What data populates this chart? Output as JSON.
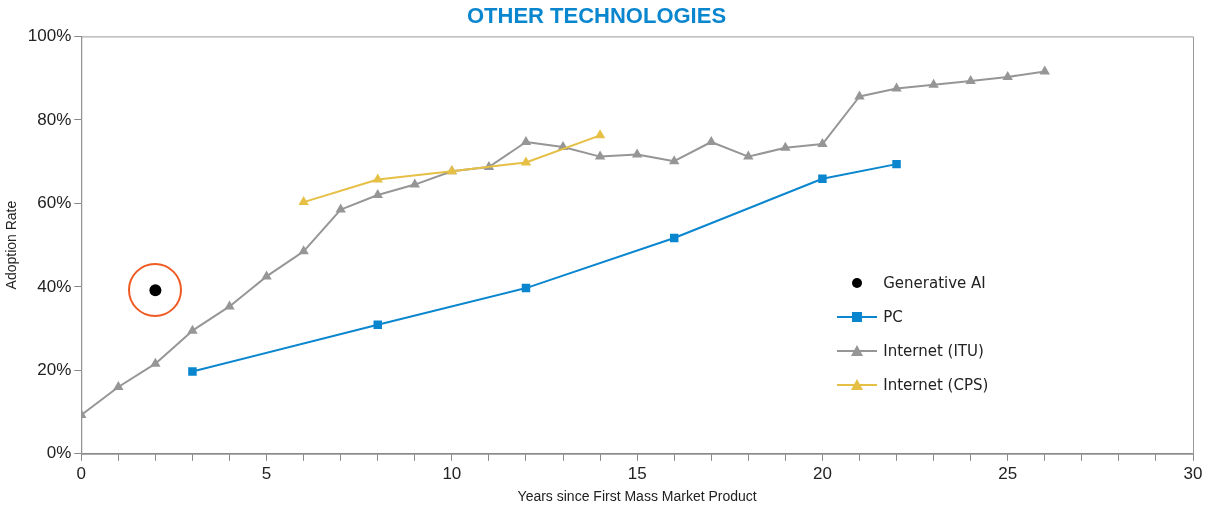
{
  "chart_data": {
    "type": "line",
    "title": "OTHER TECHNOLOGIES",
    "xlabel": "Years since First Mass Market Product",
    "ylabel": "Adoption Rate",
    "xlim": [
      0,
      30
    ],
    "xticks": [
      0,
      {
        "value": 1,
        "label": null
      },
      {
        "value": 2,
        "label": null
      },
      {
        "value": 3,
        "label": null
      },
      {
        "value": 4,
        "label": null
      },
      5,
      {
        "value": 6,
        "label": null
      },
      {
        "value": 7,
        "label": null
      },
      {
        "value": 8,
        "label": null
      },
      {
        "value": 9,
        "label": null
      },
      10,
      {
        "value": 11,
        "label": null
      },
      {
        "value": 12,
        "label": null
      },
      {
        "value": 13,
        "label": null
      },
      {
        "value": 14,
        "label": null
      },
      15,
      {
        "value": 16,
        "label": null
      },
      {
        "value": 17,
        "label": null
      },
      {
        "value": 18,
        "label": null
      },
      {
        "value": 19,
        "label": null
      },
      20,
      {
        "value": 21,
        "label": null
      },
      {
        "value": 22,
        "label": null
      },
      {
        "value": 23,
        "label": null
      },
      {
        "value": 24,
        "label": null
      },
      25,
      {
        "value": 26,
        "label": null
      },
      {
        "value": 27,
        "label": null
      },
      {
        "value": 28,
        "label": null
      },
      {
        "value": 29,
        "label": null
      },
      30
    ],
    "ylim": [
      0,
      100
    ],
    "yticks": [
      {
        "value": 0,
        "label": "0%"
      },
      {
        "value": 20,
        "label": "20%"
      },
      {
        "value": 40,
        "label": "40%"
      },
      {
        "value": 60,
        "label": "60%"
      },
      {
        "value": 80,
        "label": "80%"
      },
      {
        "value": 100,
        "label": "100%"
      }
    ],
    "grid": false,
    "legend": "right",
    "line_style": "solid",
    "series": [
      {
        "name": "Generative AI",
        "type": "scatter",
        "marker": "circle",
        "color": "#000000",
        "x": [
          2
        ],
        "values": [
          39.2
        ]
      },
      {
        "name": "PC",
        "type": "line",
        "marker": "square",
        "color": "#0a86cf",
        "x": [
          3,
          8,
          12,
          16,
          20,
          22
        ],
        "values": [
          19.7,
          30.9,
          39.7,
          51.7,
          65.9,
          69.4
        ]
      },
      {
        "name": "Internet (ITU)",
        "type": "line",
        "marker": "triangle",
        "color": "#969696",
        "x": [
          0,
          1,
          2,
          3,
          4,
          5,
          6,
          7,
          8,
          9,
          10,
          11,
          12,
          13,
          14,
          15,
          16,
          17,
          18,
          19,
          20,
          21,
          22,
          23,
          24,
          25,
          26
        ],
        "values": [
          9.3,
          16.0,
          21.6,
          29.5,
          35.3,
          42.5,
          48.5,
          58.5,
          62.0,
          64.5,
          67.7,
          68.7,
          74.7,
          73.5,
          71.2,
          71.7,
          70.1,
          74.7,
          71.2,
          73.3,
          74.2,
          85.6,
          87.5,
          88.4,
          89.3,
          90.3,
          91.6
        ]
      },
      {
        "name": "Internet (CPS)",
        "type": "line",
        "marker": "triangle",
        "color": "#e6bf45",
        "x": [
          6,
          8,
          10,
          12,
          14
        ],
        "values": [
          60.3,
          65.7,
          67.7,
          69.8,
          76.3
        ]
      }
    ]
  }
}
